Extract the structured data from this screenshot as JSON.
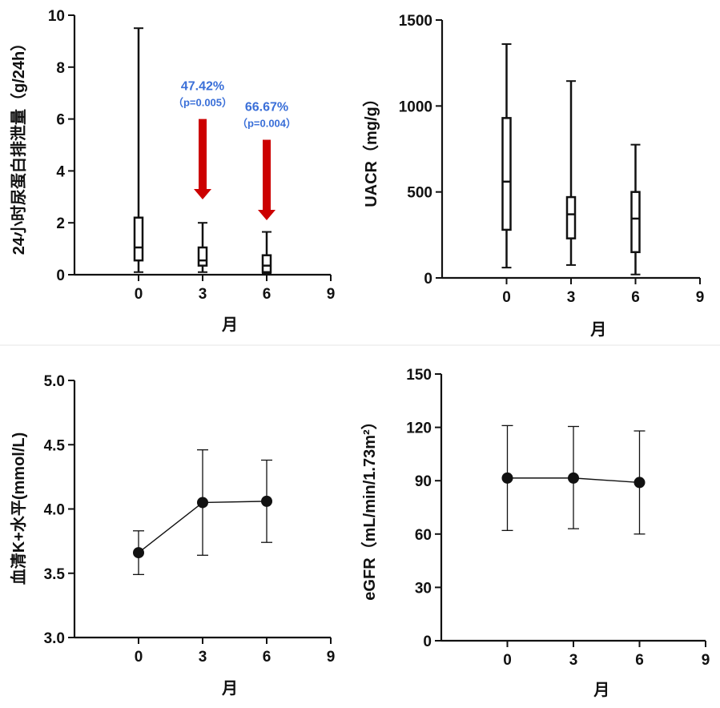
{
  "chart_data": [
    {
      "type": "box",
      "ylabel": "24小时尿蛋白排泄量（g/24h）",
      "xlabel": "月",
      "x_ticks": [
        0,
        3,
        6,
        9
      ],
      "y_ticks": [
        0,
        2,
        4,
        6,
        8,
        10
      ],
      "xlim": [
        -3,
        9
      ],
      "ylim": [
        0,
        10
      ],
      "boxes": [
        {
          "x": 0,
          "min": 0.1,
          "q1": 0.55,
          "median": 1.05,
          "q3": 2.2,
          "max": 9.5
        },
        {
          "x": 3,
          "min": 0.1,
          "q1": 0.35,
          "median": 0.55,
          "q3": 1.05,
          "max": 2.0
        },
        {
          "x": 6,
          "min": 0.05,
          "q1": 0.1,
          "median": 0.35,
          "q3": 0.75,
          "max": 1.65
        }
      ],
      "annotations": [
        {
          "x": 3,
          "percent": "47.42%",
          "p": "（p=0.005）",
          "arrow_from": 6.0,
          "arrow_to": 2.9
        },
        {
          "x": 6,
          "percent": "66.67%",
          "p": "（p=0.004）",
          "arrow_from": 5.2,
          "arrow_to": 2.1
        }
      ],
      "colors": {
        "arrow": "#cc0000",
        "annotation": "#3a6fd8"
      }
    },
    {
      "type": "box",
      "ylabel": "UACR（mg/g）",
      "xlabel": "月",
      "x_ticks": [
        0,
        3,
        6,
        9
      ],
      "y_ticks": [
        0,
        500,
        1000,
        1500
      ],
      "xlim": [
        -3,
        9
      ],
      "ylim": [
        0,
        1500
      ],
      "boxes": [
        {
          "x": 0,
          "min": 60,
          "q1": 280,
          "median": 560,
          "q3": 930,
          "max": 1360
        },
        {
          "x": 3,
          "min": 75,
          "q1": 230,
          "median": 370,
          "q3": 470,
          "max": 1145
        },
        {
          "x": 6,
          "min": 20,
          "q1": 150,
          "median": 345,
          "q3": 500,
          "max": 775
        }
      ]
    },
    {
      "type": "line",
      "ylabel": "血清K+水平(mmol/L)",
      "xlabel": "月",
      "x_ticks": [
        0,
        3,
        6,
        9
      ],
      "y_ticks": [
        "3.0",
        "3.5",
        "4.0",
        "4.5",
        "5.0"
      ],
      "xlim": [
        -3,
        9
      ],
      "ylim": [
        3.0,
        5.0
      ],
      "points": [
        {
          "x": 0,
          "y": 3.66,
          "err_low": 3.49,
          "err_high": 3.83
        },
        {
          "x": 3,
          "y": 4.05,
          "err_low": 3.64,
          "err_high": 4.46
        },
        {
          "x": 6,
          "y": 4.06,
          "err_low": 3.74,
          "err_high": 4.38
        }
      ]
    },
    {
      "type": "line",
      "ylabel": "eGFR（mL/min/1.73m²）",
      "xlabel": "月",
      "x_ticks": [
        0,
        3,
        6,
        9
      ],
      "y_ticks": [
        0,
        30,
        60,
        90,
        120,
        150
      ],
      "xlim": [
        -3,
        9
      ],
      "ylim": [
        0,
        150
      ],
      "points": [
        {
          "x": 0,
          "y": 91.5,
          "err_low": 62,
          "err_high": 121
        },
        {
          "x": 3,
          "y": 91.5,
          "err_low": 63,
          "err_high": 120.5
        },
        {
          "x": 6,
          "y": 89,
          "err_low": 60,
          "err_high": 118
        }
      ]
    }
  ]
}
